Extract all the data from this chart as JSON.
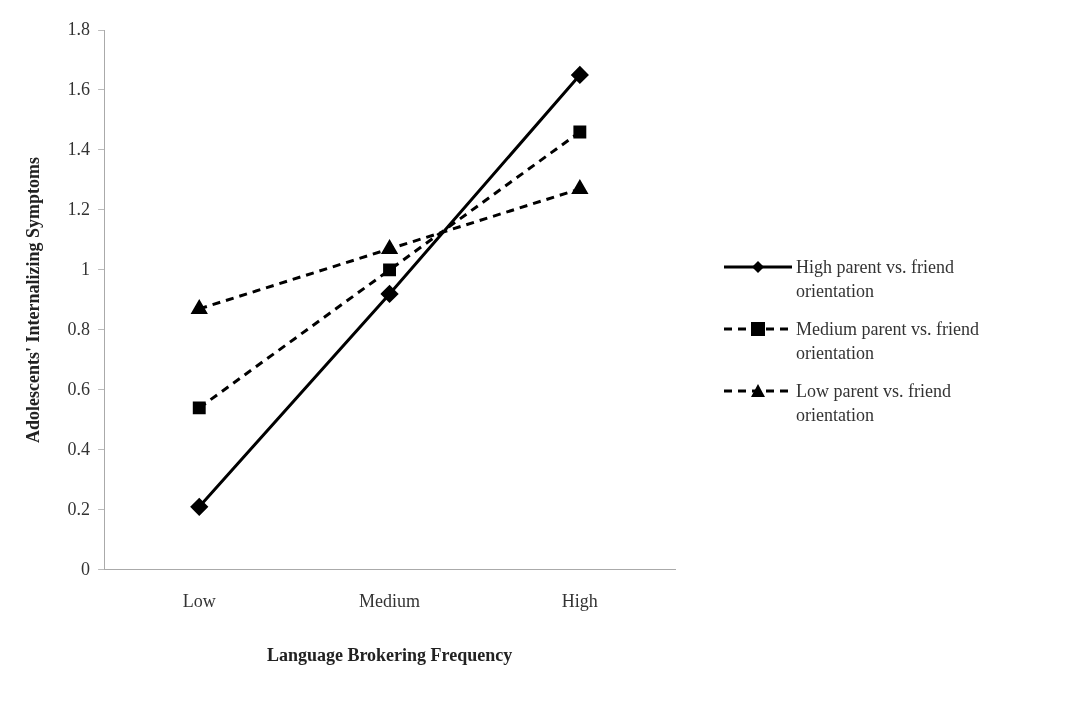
{
  "chart_data": {
    "type": "line",
    "xlabel": "Language Brokering Frequency",
    "ylabel": "Adolescents' Internalizing Symptoms",
    "categories": [
      "Low",
      "Medium",
      "High"
    ],
    "ylim": [
      0,
      1.8
    ],
    "yticks": [
      0,
      0.2,
      0.4,
      0.6,
      0.8,
      1,
      1.2,
      1.4,
      1.6,
      1.8
    ],
    "grid": false,
    "legend": "right",
    "series": [
      {
        "name": "High parent vs. friend orientation",
        "color": "#000000",
        "values": [
          0.21,
          0.92,
          1.65
        ],
        "marker": "diamond",
        "line_style": "solid"
      },
      {
        "name": "Medium parent vs. friend orientation",
        "color": "#000000",
        "values": [
          0.54,
          1.0,
          1.46
        ],
        "marker": "square",
        "line_style": "dashed"
      },
      {
        "name": "Low parent vs. friend orientation",
        "color": "#000000",
        "values": [
          0.87,
          1.07,
          1.27
        ],
        "marker": "triangle",
        "line_style": "dashed"
      }
    ]
  }
}
